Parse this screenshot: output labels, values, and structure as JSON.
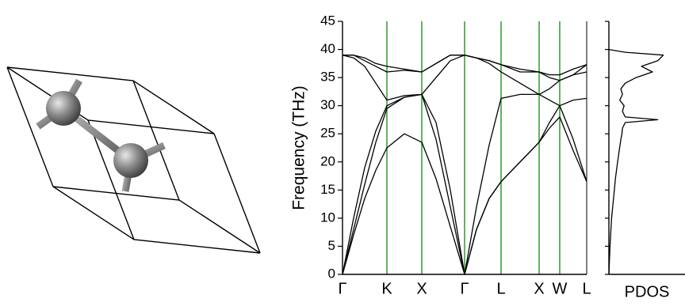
{
  "chart_data": [
    {
      "type": "line",
      "ylabel": "Frequency (THz)",
      "x": [
        0,
        0.14,
        0.28,
        0.42,
        0.56,
        0.78,
        1.0,
        1.18,
        1.36,
        1.54,
        1.69,
        1.85,
        2.0,
        2.24,
        2.48,
        2.61,
        2.74,
        2.91,
        3.08
      ],
      "xlim": [
        0,
        3.08
      ],
      "xticks": [
        {
          "value": 0,
          "label": "Γ"
        },
        {
          "value": 0.56,
          "label": "K"
        },
        {
          "value": 1.0,
          "label": "X"
        },
        {
          "value": 1.54,
          "label": "Γ"
        },
        {
          "value": 2.0,
          "label": "L"
        },
        {
          "value": 2.48,
          "label": "X"
        },
        {
          "value": 2.74,
          "label": "W"
        },
        {
          "value": 3.08,
          "label": "L"
        }
      ],
      "ylim": [
        0,
        45
      ],
      "yticks": [
        0,
        5,
        10,
        15,
        20,
        25,
        30,
        35,
        40,
        45
      ],
      "grid_color": "#2e9a2e",
      "series": [
        {
          "color": "#000000",
          "values": [
            0,
            7,
            13.5,
            18.5,
            22.5,
            25,
            23.5,
            17,
            8.5,
            0,
            8,
            13.5,
            16.5,
            20,
            23.5,
            26,
            28,
            22,
            16.5
          ]
        },
        {
          "color": "#000000",
          "values": [
            0,
            8,
            16,
            23.5,
            29.5,
            31.5,
            32,
            24,
            12,
            0,
            8,
            13.5,
            16.5,
            20,
            23.5,
            27,
            30,
            24,
            16.5
          ]
        },
        {
          "color": "#000000",
          "values": [
            0,
            10,
            19,
            25.5,
            30,
            31.5,
            32,
            27,
            15,
            0,
            12,
            23,
            31.3,
            32,
            32,
            31,
            30,
            31,
            31.3
          ]
        },
        {
          "color": "#000000",
          "values": [
            39,
            38.5,
            37,
            34,
            31,
            31.8,
            32,
            35,
            38,
            39,
            38.5,
            37.5,
            36,
            34,
            32,
            33,
            34.5,
            35.5,
            36
          ]
        },
        {
          "color": "#000000",
          "values": [
            39,
            39,
            38,
            37,
            36,
            36.3,
            36,
            37.5,
            39,
            39,
            38.5,
            38,
            37.3,
            36,
            36,
            35,
            34.5,
            35.5,
            37.3
          ]
        },
        {
          "color": "#000000",
          "values": [
            39,
            39,
            38.5,
            37.5,
            37,
            36.5,
            36,
            37.5,
            39,
            39,
            38.5,
            38,
            37.3,
            36.5,
            36,
            35.5,
            35.5,
            36.5,
            37.3
          ]
        }
      ]
    },
    {
      "type": "line",
      "orientation": "horizontal",
      "xlabel": "PDOS",
      "x": [
        0,
        5,
        10,
        15,
        17,
        20,
        22,
        24,
        25,
        26,
        27,
        27.5,
        28,
        29,
        30,
        31,
        32,
        33,
        34,
        35,
        36,
        37,
        38,
        39,
        39.5,
        40
      ],
      "values": [
        0,
        0.02,
        0.05,
        0.1,
        0.12,
        0.16,
        0.19,
        0.22,
        0.24,
        0.25,
        0.3,
        0.9,
        0.3,
        0.25,
        0.28,
        0.2,
        0.25,
        0.22,
        0.3,
        0.5,
        0.8,
        0.6,
        0.9,
        1.0,
        0.3,
        0
      ],
      "xlim": [
        0,
        1.4
      ],
      "ylim": [
        0,
        45
      ],
      "yticks": [
        0,
        5,
        10,
        15,
        20,
        25,
        30,
        35,
        40,
        45
      ],
      "color": "#000000"
    }
  ]
}
